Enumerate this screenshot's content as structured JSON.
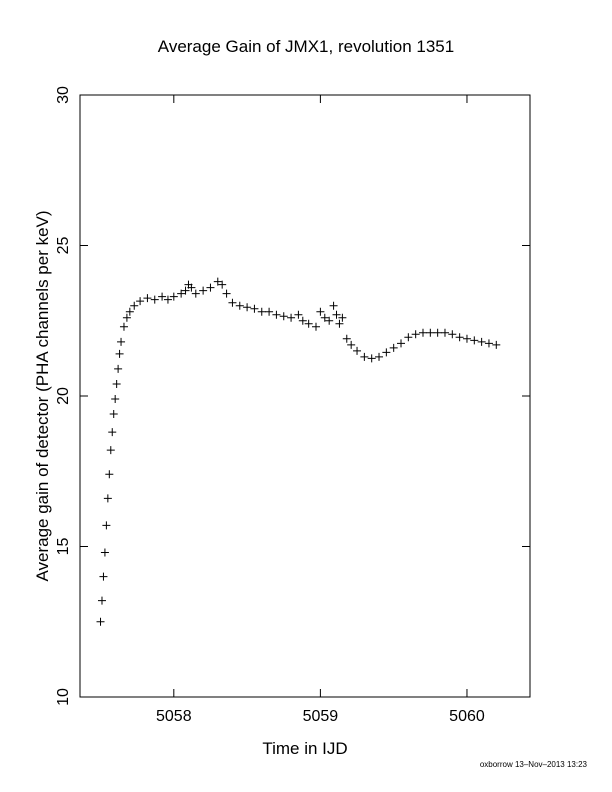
{
  "chart_data": {
    "type": "scatter",
    "title": "Average Gain of JMX1, revolution 1351",
    "x_label": "Time in IJD",
    "y_label": "Average gain of detector (PHA channels per keV)",
    "footer": "oxborrow 13–Nov–2013 13:23",
    "xlim": [
      5057.36,
      5060.43
    ],
    "ylim": [
      10,
      30
    ],
    "xticks": [
      5058,
      5059,
      5060
    ],
    "yticks": [
      10,
      15,
      20,
      25,
      30
    ],
    "color": "#000000",
    "x": [
      5057.5,
      5057.51,
      5057.52,
      5057.53,
      5057.54,
      5057.55,
      5057.56,
      5057.57,
      5057.58,
      5057.59,
      5057.6,
      5057.61,
      5057.62,
      5057.63,
      5057.64,
      5057.66,
      5057.68,
      5057.7,
      5057.73,
      5057.77,
      5057.82,
      5057.87,
      5057.92,
      5057.96,
      5058.0,
      5058.05,
      5058.08,
      5058.1,
      5058.12,
      5058.15,
      5058.2,
      5058.25,
      5058.3,
      5058.33,
      5058.36,
      5058.4,
      5058.45,
      5058.5,
      5058.55,
      5058.6,
      5058.65,
      5058.7,
      5058.75,
      5058.8,
      5058.85,
      5058.88,
      5058.92,
      5058.97,
      5059.0,
      5059.03,
      5059.06,
      5059.09,
      5059.11,
      5059.13,
      5059.15,
      5059.18,
      5059.21,
      5059.25,
      5059.3,
      5059.35,
      5059.4,
      5059.45,
      5059.5,
      5059.55,
      5059.6,
      5059.65,
      5059.7,
      5059.75,
      5059.8,
      5059.85,
      5059.9,
      5059.95,
      5060.0,
      5060.05,
      5060.1,
      5060.15,
      5060.2
    ],
    "values": [
      12.5,
      13.2,
      14.0,
      14.8,
      15.7,
      16.6,
      17.4,
      18.2,
      18.8,
      19.4,
      19.9,
      20.4,
      20.9,
      21.4,
      21.8,
      22.3,
      22.6,
      22.8,
      23.0,
      23.15,
      23.25,
      23.2,
      23.3,
      23.2,
      23.3,
      23.4,
      23.5,
      23.7,
      23.6,
      23.4,
      23.5,
      23.6,
      23.8,
      23.7,
      23.4,
      23.1,
      23.0,
      22.95,
      22.9,
      22.8,
      22.8,
      22.7,
      22.65,
      22.6,
      22.7,
      22.5,
      22.4,
      22.3,
      22.8,
      22.6,
      22.5,
      23.0,
      22.7,
      22.4,
      22.6,
      21.9,
      21.7,
      21.5,
      21.3,
      21.25,
      21.3,
      21.45,
      21.6,
      21.75,
      21.95,
      22.05,
      22.1,
      22.1,
      22.1,
      22.1,
      22.05,
      21.95,
      21.9,
      21.85,
      21.8,
      21.75,
      21.7
    ]
  }
}
